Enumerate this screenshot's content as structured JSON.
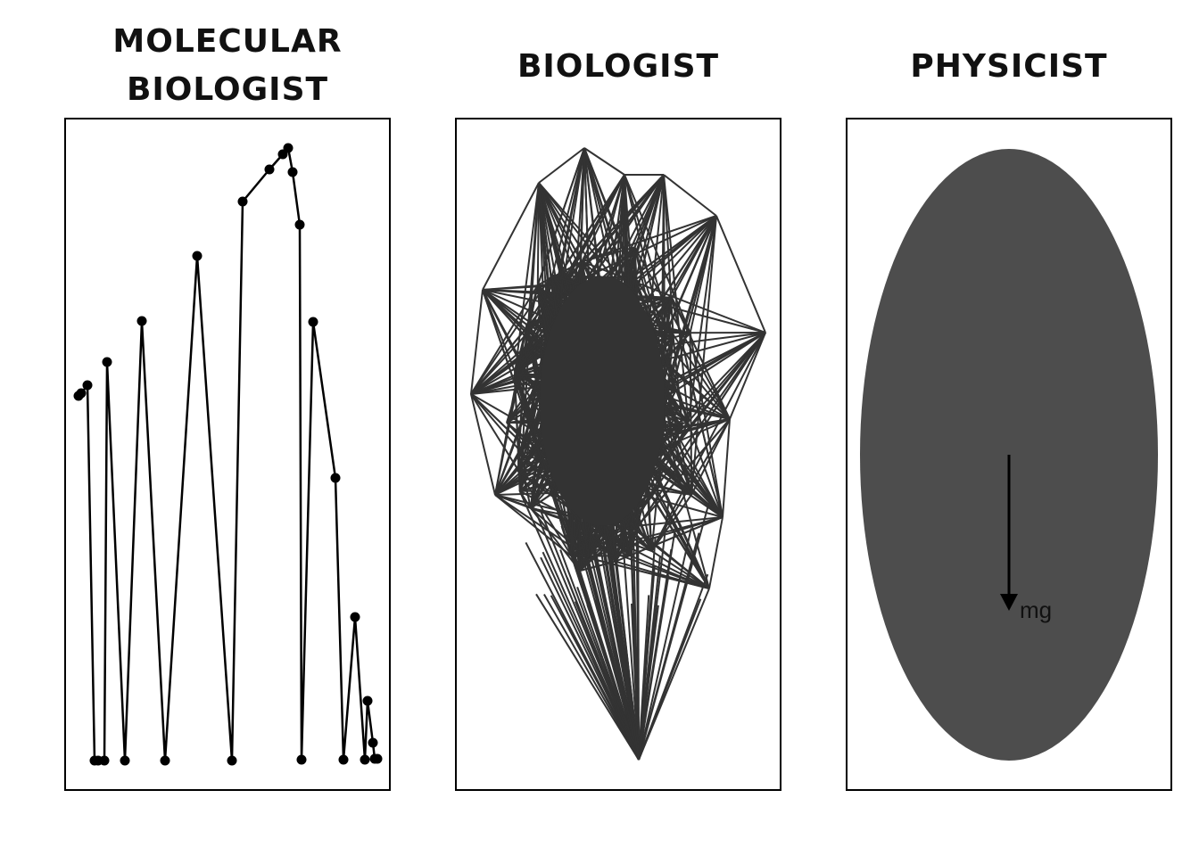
{
  "panels": {
    "molecular_biologist": {
      "title_lines": [
        "MOLECULAR",
        "BIOLOGIST"
      ]
    },
    "biologist": {
      "title": "BIOLOGIST"
    },
    "physicist": {
      "title": "PHYSICIST",
      "force_label": "mg"
    }
  },
  "colors": {
    "ink": "#000000",
    "web": "#333333",
    "body": "#4d4d4d"
  },
  "icons": {
    "force_arrow": "down-arrow-icon"
  }
}
